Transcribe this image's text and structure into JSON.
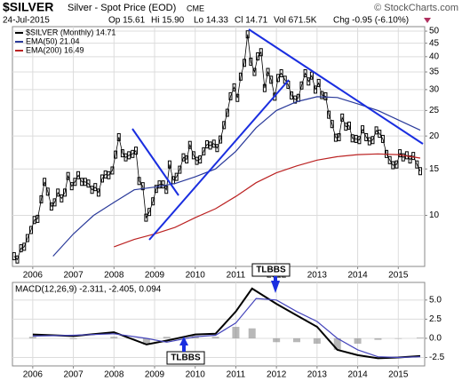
{
  "header": {
    "symbol": "$SILVER",
    "name": "Silver - Spot Price (EOD)",
    "exchange": "CME",
    "source": "© StockCharts.com",
    "date": "24-Jul-2015",
    "open": "Op 15.61",
    "high": "Hi 15.90",
    "low": "Lo 14.33",
    "close": "Cl 14.71",
    "volume": "Vol 671.5K",
    "change": "Chg -0.95 (-6.10%)"
  },
  "chart_data": [
    {
      "type": "line",
      "log": true,
      "grid": true,
      "legend": "upper left",
      "xlim": [
        2005.5,
        2015.65
      ],
      "xticks": [
        2006,
        2007,
        2008,
        2009,
        2010,
        2011,
        2012,
        2013,
        2014,
        2015
      ],
      "ylim": [
        6.4,
        52
      ],
      "yticks": [
        10,
        15,
        20,
        25,
        30,
        35,
        40,
        45,
        50
      ],
      "series": [
        {
          "name": "$SILVER (Monthly) 14.71",
          "color": "#000000",
          "kind": "bars",
          "x": [
            2005.54,
            2005.62,
            2005.71,
            2005.79,
            2005.87,
            2005.96,
            2006.04,
            2006.12,
            2006.21,
            2006.29,
            2006.37,
            2006.46,
            2006.54,
            2006.62,
            2006.71,
            2006.79,
            2006.87,
            2006.96,
            2007.04,
            2007.12,
            2007.21,
            2007.29,
            2007.37,
            2007.46,
            2007.54,
            2007.62,
            2007.71,
            2007.79,
            2007.87,
            2007.96,
            2008.04,
            2008.12,
            2008.21,
            2008.29,
            2008.37,
            2008.46,
            2008.54,
            2008.62,
            2008.71,
            2008.79,
            2008.87,
            2008.96,
            2009.04,
            2009.12,
            2009.21,
            2009.29,
            2009.37,
            2009.46,
            2009.54,
            2009.62,
            2009.71,
            2009.79,
            2009.87,
            2009.96,
            2010.04,
            2010.12,
            2010.21,
            2010.29,
            2010.37,
            2010.46,
            2010.54,
            2010.62,
            2010.71,
            2010.79,
            2010.87,
            2010.96,
            2011.04,
            2011.12,
            2011.21,
            2011.29,
            2011.37,
            2011.46,
            2011.54,
            2011.62,
            2011.71,
            2011.79,
            2011.87,
            2011.96,
            2012.04,
            2012.12,
            2012.21,
            2012.29,
            2012.37,
            2012.46,
            2012.54,
            2012.62,
            2012.71,
            2012.79,
            2012.87,
            2012.96,
            2013.04,
            2013.12,
            2013.21,
            2013.29,
            2013.37,
            2013.46,
            2013.54,
            2013.62,
            2013.71,
            2013.79,
            2013.87,
            2013.96,
            2014.04,
            2014.12,
            2014.21,
            2014.29,
            2014.37,
            2014.46,
            2014.54,
            2014.62,
            2014.71,
            2014.79,
            2014.87,
            2014.96,
            2015.04,
            2015.12,
            2015.21,
            2015.29,
            2015.37,
            2015.46,
            2015.54
          ],
          "values": [
            7.0,
            6.8,
            7.5,
            7.6,
            8.2,
            8.8,
            9.6,
            9.7,
            11.5,
            13.4,
            12.3,
            10.8,
            11.2,
            12.2,
            11.6,
            12.2,
            14.1,
            12.9,
            13.4,
            14.2,
            13.4,
            13.4,
            13.2,
            12.5,
            12.8,
            12.2,
            13.8,
            14.3,
            14.2,
            14.8,
            17.0,
            19.8,
            17.2,
            16.6,
            16.9,
            17.1,
            17.6,
            13.5,
            12.9,
            9.8,
            10.3,
            11.3,
            12.6,
            13.1,
            13.1,
            12.5,
            15.6,
            13.6,
            14.0,
            14.9,
            16.6,
            16.3,
            18.5,
            16.9,
            16.1,
            16.3,
            17.5,
            18.6,
            18.4,
            18.7,
            18.0,
            19.4,
            22.0,
            24.5,
            28.3,
            30.6,
            27.9,
            33.6,
            37.9,
            48.6,
            38.3,
            35.0,
            40.1,
            41.6,
            30.4,
            35.0,
            32.7,
            28.2,
            33.2,
            34.6,
            32.7,
            31.3,
            28.5,
            27.5,
            27.9,
            31.1,
            34.6,
            32.2,
            33.9,
            30.0,
            31.8,
            28.6,
            28.3,
            24.1,
            22.2,
            19.7,
            19.8,
            23.5,
            21.7,
            21.9,
            19.6,
            19.5,
            19.3,
            21.2,
            19.8,
            19.1,
            19.3,
            21.0,
            20.4,
            19.5,
            17.1,
            16.2,
            15.5,
            15.6,
            17.2,
            16.6,
            16.9,
            16.3,
            16.8,
            15.6,
            14.71
          ]
        },
        {
          "name": "EMA(50) 21.04",
          "color": "#2a3a9a",
          "kind": "line",
          "x": [
            2006.5,
            2007,
            2007.5,
            2008,
            2008.5,
            2009,
            2009.5,
            2010,
            2010.5,
            2011,
            2011.5,
            2012,
            2012.5,
            2013,
            2013.5,
            2014,
            2014.5,
            2015,
            2015.54
          ],
          "values": [
            7.0,
            8.5,
            10.0,
            11.2,
            12.5,
            12.8,
            13.2,
            14.0,
            15.0,
            17.5,
            21.5,
            25.0,
            27.0,
            28.2,
            28.0,
            26.5,
            25.0,
            23.0,
            21.04
          ]
        },
        {
          "name": "EMA(200) 16.49",
          "color": "#bb2222",
          "kind": "line",
          "x": [
            2008,
            2008.5,
            2009,
            2009.5,
            2010,
            2010.5,
            2011,
            2011.5,
            2012,
            2012.5,
            2013,
            2013.5,
            2014,
            2014.5,
            2015,
            2015.54
          ],
          "values": [
            7.6,
            8.1,
            8.5,
            9.0,
            9.8,
            10.6,
            11.8,
            13.3,
            14.5,
            15.4,
            16.2,
            16.7,
            17.0,
            17.1,
            17.0,
            16.49
          ]
        }
      ]
    },
    {
      "type": "line",
      "log": false,
      "grid": true,
      "title": "MACD(12,26,9) -2.311, -2.405, 0.094",
      "xlim": [
        2005.5,
        2015.65
      ],
      "xticks": [
        2006,
        2007,
        2008,
        2009,
        2010,
        2011,
        2012,
        2013,
        2014,
        2015
      ],
      "ylim": [
        -3.6,
        7.3
      ],
      "yticks": [
        {
          "value": 5,
          "label": "5.0"
        },
        {
          "value": 2.5,
          "label": "2.5"
        },
        {
          "value": 0,
          "label": "0.0"
        },
        {
          "value": -2.5,
          "label": "-2.5"
        }
      ],
      "annotations": [
        "TLBBS",
        "TLBBS"
      ],
      "series": [
        {
          "color": "#888888",
          "kind": "hist",
          "x": [
            2006,
            2007,
            2008,
            2008.8,
            2009.3,
            2010,
            2010.5,
            2011,
            2011.4,
            2012,
            2012.5,
            2013,
            2013.5,
            2014,
            2014.5,
            2015,
            2015.54
          ],
          "values": [
            0.2,
            -0.1,
            0.2,
            -0.8,
            0.2,
            0.3,
            0.2,
            1.5,
            1.3,
            -0.5,
            -0.5,
            -0.7,
            -1.5,
            -0.7,
            -0.2,
            0.0,
            0.094
          ]
        },
        {
          "color": "#000000",
          "kind": "line",
          "x": [
            2006,
            2007,
            2008,
            2008.8,
            2009.3,
            2010,
            2010.5,
            2011,
            2011.4,
            2012,
            2012.5,
            2013,
            2013.5,
            2014,
            2014.5,
            2015,
            2015.54
          ],
          "values": [
            0.5,
            0.3,
            0.8,
            -0.8,
            -0.3,
            0.5,
            0.6,
            3.5,
            6.5,
            4.5,
            3.0,
            1.5,
            -1.5,
            -2.2,
            -2.6,
            -2.5,
            -2.311
          ]
        },
        {
          "color": "#4444bb",
          "kind": "line",
          "x": [
            2006,
            2007,
            2008,
            2008.8,
            2009.3,
            2010,
            2010.5,
            2011,
            2011.5,
            2012,
            2012.5,
            2013,
            2013.5,
            2014,
            2014.5,
            2015,
            2015.54
          ],
          "values": [
            0.3,
            0.4,
            0.6,
            0.0,
            -0.5,
            0.2,
            0.4,
            2.0,
            5.2,
            5.0,
            3.5,
            2.2,
            0.0,
            -1.5,
            -2.4,
            -2.5,
            -2.405
          ]
        }
      ]
    }
  ]
}
